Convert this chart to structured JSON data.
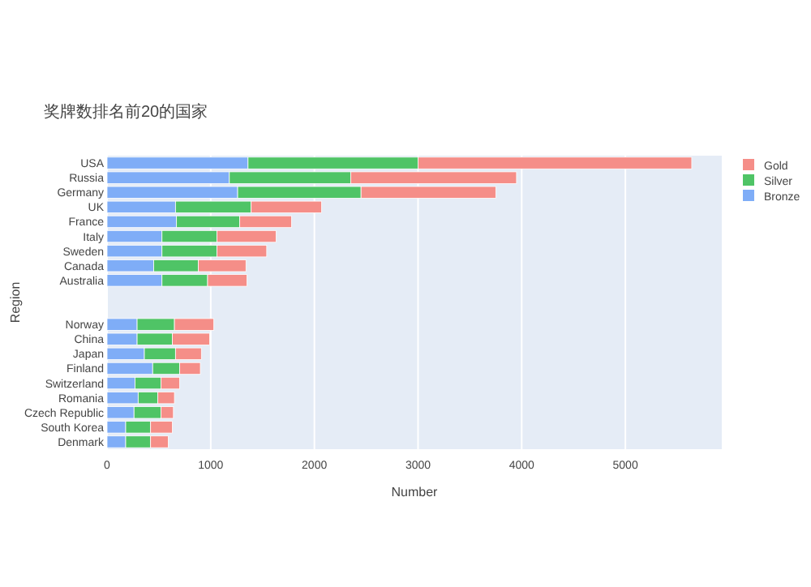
{
  "chart_data": {
    "type": "bar",
    "orientation": "horizontal",
    "stacked": true,
    "title": "奖牌数排名前20的国家",
    "xlabel": "Number",
    "ylabel": "Region",
    "categories": [
      "USA",
      "Russia",
      "Germany",
      "UK",
      "France",
      "Italy",
      "Sweden",
      "Canada",
      "Australia",
      null,
      null,
      "Norway",
      "China",
      "Japan",
      "Finland",
      "Switzerland",
      "Romania",
      "Czech Republic",
      "South Korea",
      "Denmark"
    ],
    "series": [
      {
        "name": "Bronze",
        "color": "#7fadf7",
        "values": [
          1360,
          1180,
          1260,
          660,
          670,
          530,
          530,
          450,
          530,
          null,
          null,
          290,
          290,
          360,
          440,
          270,
          300,
          260,
          180,
          180
        ]
      },
      {
        "name": "Silver",
        "color": "#4fc466",
        "values": [
          1640,
          1170,
          1190,
          730,
          610,
          530,
          530,
          430,
          440,
          null,
          null,
          360,
          340,
          300,
          260,
          250,
          190,
          260,
          240,
          240
        ]
      },
      {
        "name": "Gold",
        "color": "#f58e88",
        "values": [
          2640,
          1600,
          1300,
          680,
          500,
          570,
          480,
          460,
          380,
          null,
          null,
          380,
          360,
          250,
          200,
          180,
          160,
          120,
          210,
          170
        ]
      }
    ],
    "xlim": [
      0,
      5930
    ],
    "xticks": [
      0,
      1000,
      2000,
      3000,
      4000,
      5000
    ],
    "grid": "x",
    "legend": "top right"
  }
}
